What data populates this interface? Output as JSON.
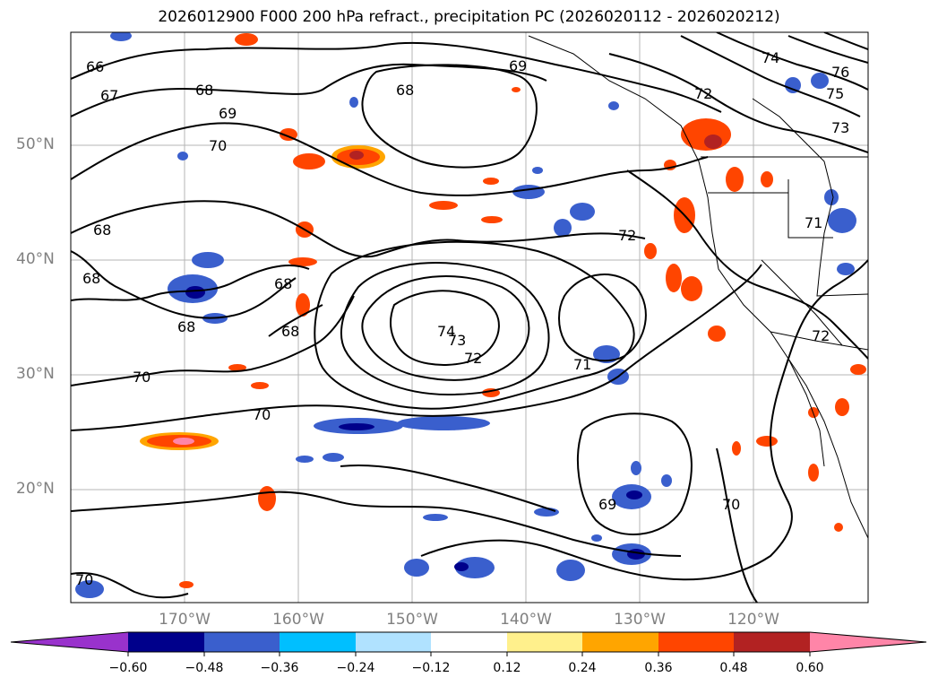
{
  "title": "2026012900 F000 200 hPa refract., precipitation PC (2026020112 - 2026020212)",
  "map": {
    "latitude_labels": [
      "50°N",
      "40°N",
      "30°N",
      "20°N"
    ],
    "longitude_labels": [
      "170°W",
      "160°W",
      "150°W",
      "140°W",
      "130°W",
      "120°W"
    ],
    "gridline_color": "#b4b4b4",
    "label_color": "#808080",
    "contour_labels": [
      "66",
      "67",
      "68",
      "69",
      "70",
      "68",
      "69",
      "68",
      "72",
      "73",
      "74",
      "75",
      "76",
      "71",
      "72",
      "68",
      "68",
      "68",
      "68",
      "74",
      "73",
      "72",
      "71",
      "70",
      "70",
      "70",
      "69",
      "70",
      "72"
    ]
  },
  "colorbar": {
    "ticks": [
      "−0.60",
      "−0.48",
      "−0.36",
      "−0.24",
      "−0.12",
      "0.12",
      "0.24",
      "0.36",
      "0.48",
      "0.60"
    ],
    "colors": [
      "#9932cc",
      "#00008b",
      "#3a5fcd",
      "#00bfff",
      "#b0e2ff",
      "#ffffff",
      "#fff08c",
      "#ffa500",
      "#ff4500",
      "#b22222",
      "#ff85a8"
    ]
  }
}
